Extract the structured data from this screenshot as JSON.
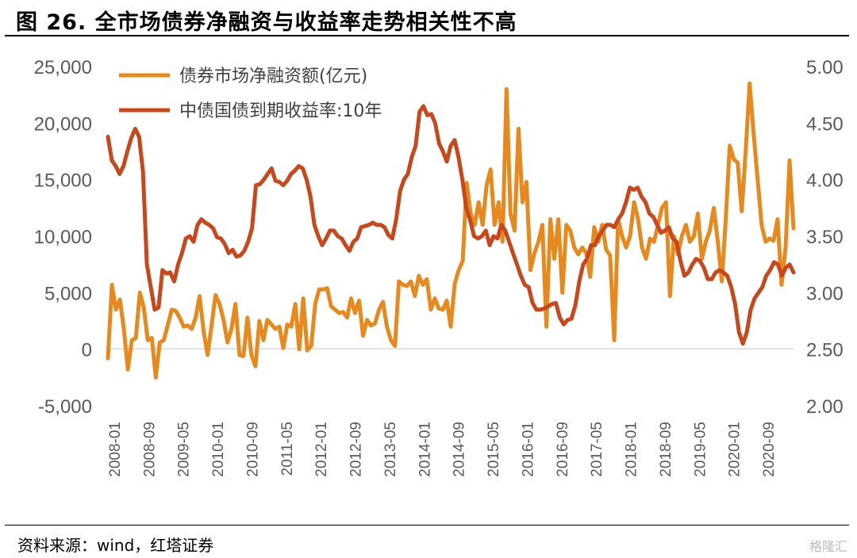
{
  "figure": {
    "title": "图 26. 全市场债券净融资与收益率走势相关性不高",
    "source": "资料来源：wind，红塔证券",
    "watermark": "格隆汇"
  },
  "chart_data": {
    "type": "line",
    "legend_placement": "top-left",
    "grid": false,
    "y_left": {
      "min": -5000,
      "max": 25000,
      "ticks": [
        "-5,000",
        "0",
        "5,000",
        "10,000",
        "15,000",
        "20,000",
        "25,000"
      ]
    },
    "y_right": {
      "min": 2.0,
      "max": 5.0,
      "ticks": [
        "2.00",
        "2.50",
        "3.00",
        "3.50",
        "4.00",
        "4.50",
        "5.00"
      ]
    },
    "x_ticks": [
      "2008-01",
      "2008-09",
      "2009-05",
      "2010-01",
      "2010-09",
      "2011-05",
      "2012-01",
      "2012-09",
      "2013-05",
      "2014-01",
      "2014-09",
      "2015-05",
      "2016-01",
      "2016-09",
      "2017-05",
      "2018-01",
      "2018-09",
      "2019-05",
      "2020-01",
      "2020-09"
    ],
    "series": [
      {
        "name": "债券市场净融资额(亿元)",
        "axis": "left",
        "color": "#E8891E",
        "values": [
          -800,
          5700,
          3500,
          4400,
          1800,
          -1800,
          800,
          1000,
          5000,
          3700,
          800,
          1000,
          -2500,
          600,
          800,
          2100,
          3500,
          3400,
          2800,
          2000,
          2100,
          1800,
          2800,
          4700,
          1600,
          -500,
          2100,
          4800,
          4000,
          2600,
          600,
          1800,
          4000,
          -500,
          -600,
          2800,
          -500,
          -1500,
          2500,
          800,
          2600,
          2200,
          1800,
          2000,
          100,
          2200,
          2000,
          4000,
          0,
          4500,
          -100,
          300,
          4000,
          5300,
          5300,
          5400,
          3800,
          3500,
          3200,
          3300,
          2800,
          4500,
          3200,
          4300,
          1200,
          2600,
          2100,
          2300,
          3500,
          4200,
          2000,
          800,
          300,
          6000,
          5700,
          5600,
          6000,
          4700,
          6500,
          5700,
          6200,
          3500,
          4500,
          3600,
          3500,
          4300,
          2000,
          5800,
          7000,
          7800,
          14700,
          12000,
          11000,
          13000,
          11000,
          14500,
          15900,
          11000,
          13000,
          9500,
          23000,
          12000,
          10500,
          19500,
          13000,
          14800,
          7000,
          8500,
          9500,
          11000,
          2000,
          11500,
          8000,
          11500,
          5000,
          11000,
          10500,
          9000,
          8400,
          9000,
          8500,
          6400,
          10800,
          9500,
          11000,
          8800,
          8300,
          800,
          11500,
          10000,
          9000,
          10000,
          13000,
          11500,
          9000,
          8000,
          9800,
          9500,
          11000,
          12500,
          13000,
          4700,
          10000,
          8400,
          10000,
          11000,
          9500,
          10000,
          12000,
          8000,
          9500,
          10500,
          12500,
          9500,
          6000,
          11500,
          18000,
          16800,
          16500,
          12200,
          17500,
          23500,
          19000,
          15000,
          11000,
          9500,
          9800,
          9600,
          11500,
          5700,
          9000,
          16700,
          10700
        ]
      },
      {
        "name": "中债国债到期收益率:10年",
        "axis": "right",
        "color": "#C8481C",
        "values": [
          4.38,
          4.17,
          4.12,
          4.05,
          4.12,
          4.25,
          4.37,
          4.45,
          4.38,
          4.07,
          3.25,
          3.05,
          2.85,
          2.87,
          3.2,
          3.17,
          3.18,
          3.1,
          3.25,
          3.35,
          3.48,
          3.5,
          3.45,
          3.6,
          3.65,
          3.62,
          3.6,
          3.57,
          3.49,
          3.48,
          3.43,
          3.35,
          3.38,
          3.32,
          3.33,
          3.37,
          3.45,
          3.57,
          3.95,
          3.96,
          4.0,
          4.05,
          4.1,
          3.99,
          3.98,
          3.95,
          3.99,
          4.05,
          4.08,
          4.12,
          4.1,
          4.0,
          3.85,
          3.6,
          3.5,
          3.42,
          3.48,
          3.55,
          3.55,
          3.5,
          3.48,
          3.42,
          3.37,
          3.45,
          3.48,
          3.58,
          3.59,
          3.6,
          3.62,
          3.6,
          3.6,
          3.58,
          3.51,
          3.48,
          3.65,
          3.9,
          4.0,
          4.05,
          4.2,
          4.3,
          4.6,
          4.65,
          4.57,
          4.58,
          4.5,
          4.32,
          4.25,
          4.16,
          4.3,
          4.35,
          4.2,
          4.0,
          3.75,
          3.64,
          3.5,
          3.48,
          3.5,
          3.55,
          3.42,
          3.5,
          3.48,
          3.6,
          3.55,
          3.45,
          3.35,
          3.25,
          3.15,
          3.07,
          3.05,
          2.91,
          2.85,
          2.85,
          2.86,
          2.88,
          2.9,
          2.91,
          2.78,
          2.72,
          2.76,
          2.77,
          2.89,
          3.1,
          3.25,
          3.3,
          3.42,
          3.42,
          3.5,
          3.55,
          3.6,
          3.6,
          3.58,
          3.65,
          3.7,
          3.8,
          3.93,
          3.91,
          3.93,
          3.85,
          3.8,
          3.7,
          3.67,
          3.6,
          3.53,
          3.55,
          3.58,
          3.48,
          3.45,
          3.28,
          3.15,
          3.18,
          3.25,
          3.3,
          3.28,
          3.22,
          3.12,
          3.12,
          3.18,
          3.2,
          3.18,
          3.15,
          3.05,
          2.9,
          2.65,
          2.55,
          2.65,
          2.85,
          2.95,
          3.0,
          3.05,
          3.15,
          3.2,
          3.27,
          3.25,
          3.15,
          3.22,
          3.25,
          3.18
        ]
      }
    ]
  }
}
